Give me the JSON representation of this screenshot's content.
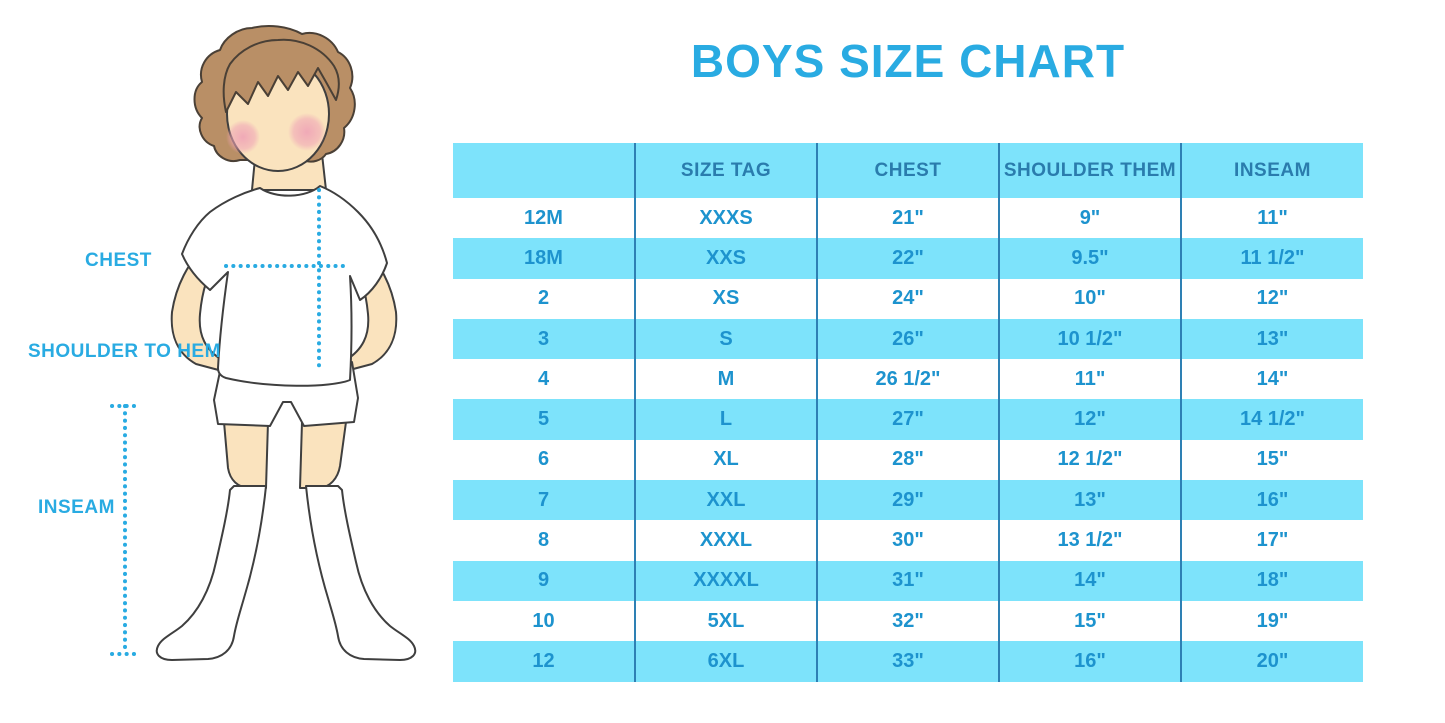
{
  "title": "BOYS SIZE CHART",
  "colors": {
    "accent": "#29ABE2",
    "row_cyan": "#7DE3FB",
    "header_text": "#2A7CAD",
    "cell_text": "#1D93CE",
    "divider": "#2E80B4"
  },
  "illustration": {
    "description": "boy wearing white t-shirt, shorts and knee socks with measurement guide lines",
    "labels": {
      "chest": "CHEST",
      "shoulder_to_hem": "SHOULDER TO HEM",
      "inseam": "INSEAM"
    }
  },
  "chart_data": {
    "type": "table",
    "title": "BOYS SIZE CHART",
    "columns": [
      "",
      "SIZE TAG",
      "CHEST",
      "SHOULDER THEM",
      "INSEAM"
    ],
    "rows": [
      [
        "12M",
        "XXXS",
        "21\"",
        "9\"",
        "11\""
      ],
      [
        "18M",
        "XXS",
        "22\"",
        "9.5\"",
        "11 1/2\""
      ],
      [
        "2",
        "XS",
        "24\"",
        "10\"",
        "12\""
      ],
      [
        "3",
        "S",
        "26\"",
        "10 1/2\"",
        "13\""
      ],
      [
        "4",
        "M",
        "26 1/2\"",
        "11\"",
        "14\""
      ],
      [
        "5",
        "L",
        "27\"",
        "12\"",
        "14 1/2\""
      ],
      [
        "6",
        "XL",
        "28\"",
        "12 1/2\"",
        "15\""
      ],
      [
        "7",
        "XXL",
        "29\"",
        "13\"",
        "16\""
      ],
      [
        "8",
        "XXXL",
        "30\"",
        "13 1/2\"",
        "17\""
      ],
      [
        "9",
        "XXXXL",
        "31\"",
        "14\"",
        "18\""
      ],
      [
        "10",
        "5XL",
        "32\"",
        "15\"",
        "19\""
      ],
      [
        "12",
        "6XL",
        "33\"",
        "16\"",
        "20\""
      ]
    ],
    "row_striping": "white / cyan alternating, header cyan",
    "grid": "vertical dividers only"
  }
}
